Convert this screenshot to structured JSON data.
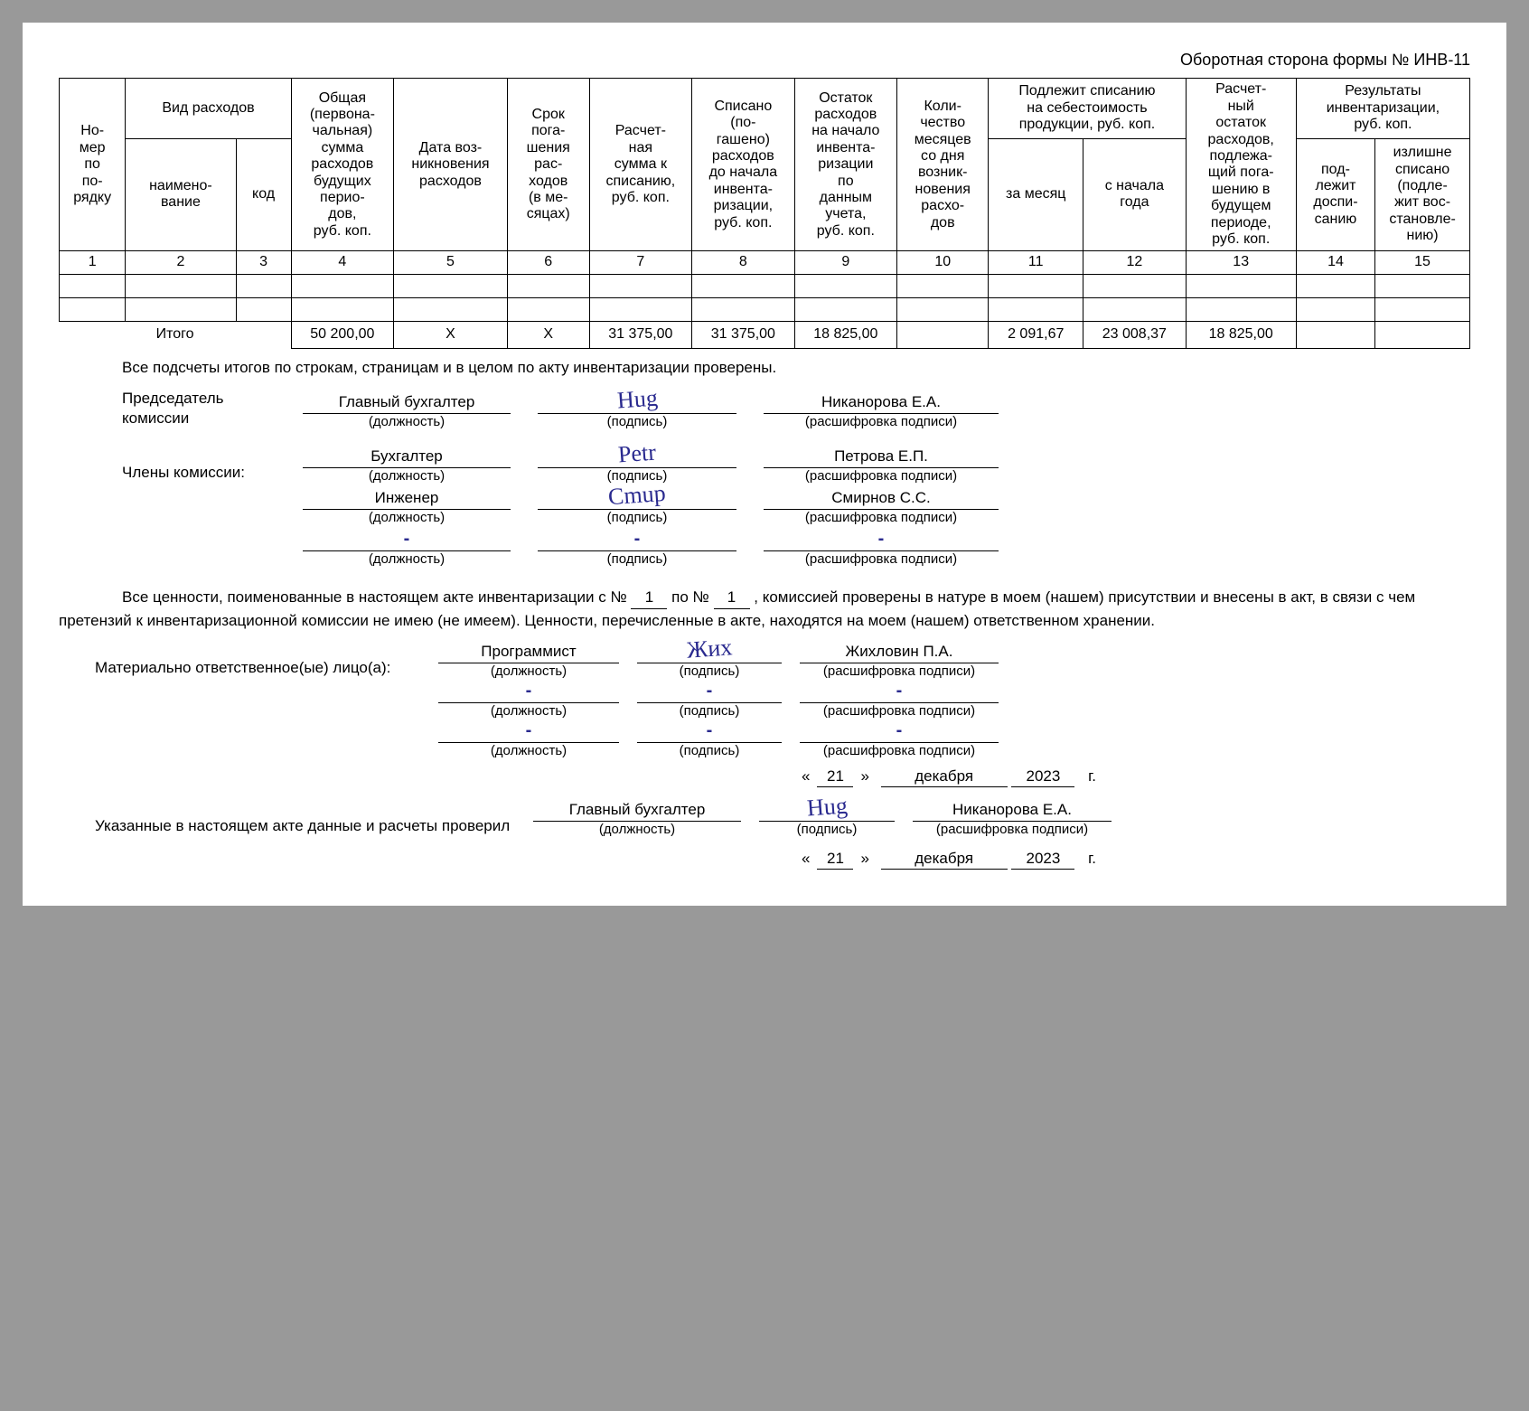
{
  "form_title": "Оборотная сторона формы № ИНВ-11",
  "headers": {
    "c1": "Но-\nмер\nпо\nпо-\nрядку",
    "c2": "Вид расходов",
    "c2a": "наимено-\nвание",
    "c2b": "код",
    "c3": "Общая\n(первона-\nчальная)\nсумма\nрасходов\nбудущих\nперио-\nдов,\nруб. коп.",
    "c4": "Дата воз-\nникновения\nрасходов",
    "c5": "Срок\nпога-\nшения\nрас-\nходов\n(в ме-\nсяцах)",
    "c6": "Расчет-\nная\nсумма к\nсписанию,\nруб. коп.",
    "c7": "Списано\n(по-\nгашено)\nрасходов\nдо начала\nинвента-\nризации,\nруб. коп.",
    "c8": "Остаток\nрасходов\nна начало\nинвента-\nризации\nпо\nданным\nучета,\nруб. коп.",
    "c9": "Коли-\nчество\nмесяцев\nсо дня\nвозник-\nновения\nрасхо-\nдов",
    "c10": "Подлежит списанию\nна себестоимость\nпродукции, руб. коп.",
    "c10a": "за месяц",
    "c10b": "с начала\nгода",
    "c11": "Расчет-\nный\nостаток\nрасходов,\nподлежа-\nщий пога-\nшению в\nбудущем\nпериоде,\nруб. коп.",
    "c12": "Результаты\nинвентаризации,\nруб. коп.",
    "c12a": "под-\nлежит\nдоспи-\nсанию",
    "c12b": "излишне\nсписано\n(подле-\nжит вос-\nстановле-\nнию)"
  },
  "colnums": [
    "1",
    "2",
    "3",
    "4",
    "5",
    "6",
    "7",
    "8",
    "9",
    "10",
    "11",
    "12",
    "13",
    "14",
    "15"
  ],
  "itogo_label": "Итого",
  "itogo": {
    "c4": "50 200,00",
    "c5": "X",
    "c6": "X",
    "c7": "31 375,00",
    "c8": "31 375,00",
    "c9": "18 825,00",
    "c10": "",
    "c11": "2 091,67",
    "c12": "23 008,37",
    "c13": "18 825,00",
    "c14": "",
    "c15": ""
  },
  "check_text": "Все подсчеты итогов по строкам, страницам и в целом по акту инвентаризации проверены.",
  "chairman_label": "Председатель комиссии",
  "members_label": "Члены комиссии:",
  "captions": {
    "pos": "(должность)",
    "sig": "(подпись)",
    "dec": "(расшифровка подписи)"
  },
  "chairman": {
    "pos": "Главный бухгалтер",
    "name": "Никанорова Е.А."
  },
  "members": [
    {
      "pos": "Бухгалтер",
      "name": "Петрова Е.П."
    },
    {
      "pos": "Инженер",
      "name": "Смирнов С.С."
    },
    {
      "pos": "",
      "name": ""
    }
  ],
  "sentence_p1": "Все ценности, поименованные в настоящем акте инвентаризации с №",
  "num_from": "1",
  "sentence_p2": "по №",
  "num_to": "1",
  "sentence_p3": ", комиссией проверены в натуре в моем (нашем) присутствии и внесены в акт, в связи с чем претензий к инвентаризационной комиссии не имею (не имеем). Ценности, перечисленные в акте, находятся на моем (нашем) ответственном хранении.",
  "resp_label": "Материально ответственное(ые) лицо(а):",
  "responsible": [
    {
      "pos": "Программист",
      "name": "Жихловин П.А."
    },
    {
      "pos": "",
      "name": ""
    },
    {
      "pos": "",
      "name": ""
    }
  ],
  "date1": {
    "d": "21",
    "m": "декабря",
    "y": "2023"
  },
  "verify_label": "Указанные в настоящем акте данные и расчеты проверил",
  "verifier": {
    "pos": "Главный бухгалтер",
    "name": "Никанорова Е.А."
  },
  "date2": {
    "d": "21",
    "m": "декабря",
    "y": "2023"
  },
  "g": "г."
}
